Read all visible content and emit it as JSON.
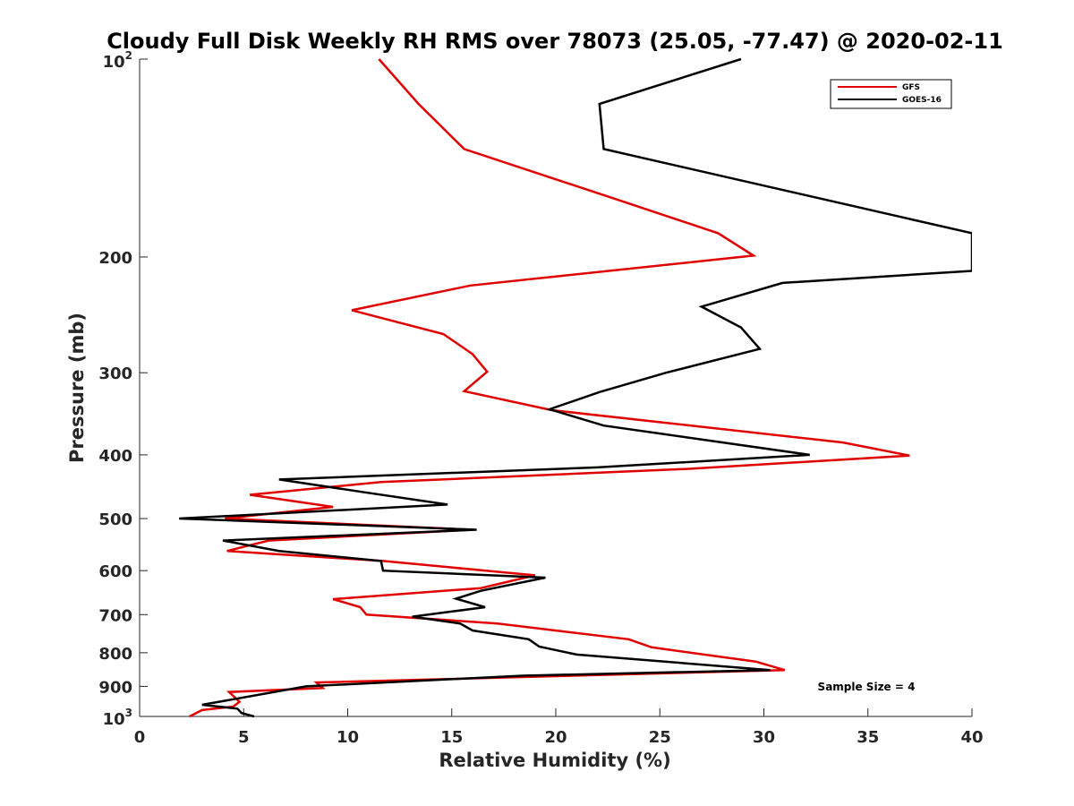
{
  "chart_data": {
    "type": "line",
    "title": "Cloudy Full Disk Weekly RH RMS over 78073 (25.05, -77.47) @ 2020-02-11",
    "xlabel": "Relative Humidity (%)",
    "ylabel": "Pressure (mb)",
    "xlim": [
      0,
      40
    ],
    "ylim": [
      100,
      1000
    ],
    "y_scale": "log",
    "y_reversed": true,
    "grid": false,
    "legend_position": "top-right",
    "x_ticks": [
      0,
      5,
      10,
      15,
      20,
      25,
      30,
      35,
      40
    ],
    "y_ticks": [
      {
        "value": 100,
        "base": "10",
        "exp": "2"
      },
      {
        "value": 200,
        "label": "200"
      },
      {
        "value": 300,
        "label": "300"
      },
      {
        "value": 400,
        "label": "400"
      },
      {
        "value": 500,
        "label": "500"
      },
      {
        "value": 600,
        "label": "600"
      },
      {
        "value": 700,
        "label": "700"
      },
      {
        "value": 800,
        "label": "800"
      },
      {
        "value": 900,
        "label": "900"
      },
      {
        "value": 1000,
        "base": "10",
        "exp": "3"
      }
    ],
    "annotation": "Sample Size = 4",
    "series": [
      {
        "name": "GFS",
        "color": "#e00000",
        "points": [
          [
            11.5,
            100
          ],
          [
            13.4,
            117
          ],
          [
            15.6,
            137
          ],
          [
            22.8,
            163
          ],
          [
            27.8,
            184
          ],
          [
            29.5,
            199
          ],
          [
            15.9,
            221
          ],
          [
            10.2,
            241
          ],
          [
            14.6,
            262
          ],
          [
            16.0,
            281
          ],
          [
            16.7,
            299
          ],
          [
            15.6,
            320
          ],
          [
            19.8,
            342
          ],
          [
            33.8,
            383
          ],
          [
            37.0,
            401
          ],
          [
            26.4,
            420
          ],
          [
            11.6,
            440
          ],
          [
            5.3,
            460
          ],
          [
            9.3,
            480
          ],
          [
            4.1,
            500
          ],
          [
            16.0,
            520
          ],
          [
            6.2,
            540
          ],
          [
            4.2,
            560
          ],
          [
            11.7,
            580
          ],
          [
            19.0,
            610
          ],
          [
            16.4,
            638
          ],
          [
            9.3,
            663
          ],
          [
            10.6,
            682
          ],
          [
            10.9,
            700
          ],
          [
            17.2,
            722
          ],
          [
            23.5,
            763
          ],
          [
            24.6,
            785
          ],
          [
            29.6,
            825
          ],
          [
            31.0,
            850
          ],
          [
            8.5,
            888
          ],
          [
            8.8,
            905
          ],
          [
            4.3,
            918
          ],
          [
            4.8,
            950
          ],
          [
            4.5,
            966
          ],
          [
            3.0,
            978
          ],
          [
            2.4,
            1000
          ]
        ]
      },
      {
        "name": "GOES-16",
        "color": "#000000",
        "points": [
          [
            28.9,
            100
          ],
          [
            22.1,
            117
          ],
          [
            22.3,
            137
          ],
          [
            40.0,
            184
          ],
          [
            40.0,
            210
          ],
          [
            30.9,
            219
          ],
          [
            27.0,
            238
          ],
          [
            28.9,
            256
          ],
          [
            29.8,
            276
          ],
          [
            25.3,
            300
          ],
          [
            22.1,
            321
          ],
          [
            19.7,
            341
          ],
          [
            22.3,
            361
          ],
          [
            32.2,
            400
          ],
          [
            22.0,
            418
          ],
          [
            6.7,
            436
          ],
          [
            10.8,
            456
          ],
          [
            14.8,
            476
          ],
          [
            1.9,
            500
          ],
          [
            16.2,
            520
          ],
          [
            4.0,
            540
          ],
          [
            6.7,
            560
          ],
          [
            11.6,
            580
          ],
          [
            11.7,
            600
          ],
          [
            19.5,
            615
          ],
          [
            16.4,
            644
          ],
          [
            15.2,
            662
          ],
          [
            16.6,
            682
          ],
          [
            13.1,
            705
          ],
          [
            15.4,
            722
          ],
          [
            16.0,
            740
          ],
          [
            18.7,
            763
          ],
          [
            19.2,
            783
          ],
          [
            21.0,
            805
          ],
          [
            30.3,
            850
          ],
          [
            18.4,
            867
          ],
          [
            8.0,
            900
          ],
          [
            3.0,
            960
          ],
          [
            4.7,
            973
          ],
          [
            4.9,
            988
          ],
          [
            5.5,
            1000
          ]
        ]
      }
    ]
  }
}
